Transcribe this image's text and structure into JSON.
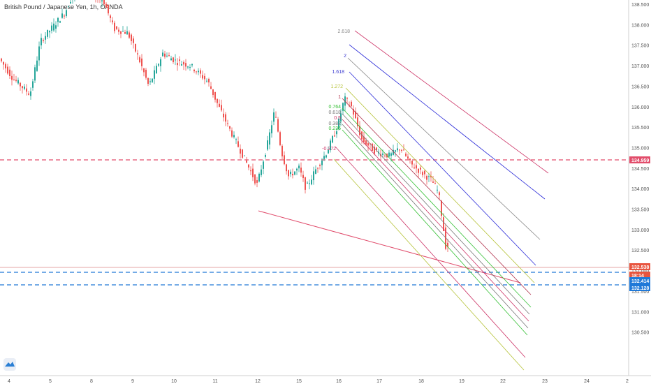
{
  "header": {
    "symbol_title": "British Pound / Japanese Yen, 1h, OANDA"
  },
  "price_axis": {
    "ticks": [
      "138.500",
      "138.000",
      "137.500",
      "137.000",
      "136.500",
      "136.000",
      "135.500",
      "135.000",
      "134.500",
      "134.000",
      "133.500",
      "133.000",
      "132.500",
      "132.000",
      "131.500",
      "131.000",
      "130.500"
    ],
    "badges": [
      {
        "label": "134.959",
        "color": "#e24d6b"
      },
      {
        "label": "132.538",
        "color": "#e8553f"
      },
      {
        "label": "18:14",
        "color": "#e8553f"
      },
      {
        "label": "132.414",
        "color": "#2079d8"
      },
      {
        "label": "132.128",
        "color": "#2079d8"
      }
    ]
  },
  "time_axis": {
    "ticks": [
      "4",
      "5",
      "8",
      "9",
      "10",
      "11",
      "12",
      "15",
      "16",
      "17",
      "18",
      "19",
      "22",
      "23",
      "24",
      "2"
    ]
  },
  "fib_labels": [
    {
      "text": "2.618",
      "color": "#8a8a8a"
    },
    {
      "text": "2",
      "color": "#3a3ad0"
    },
    {
      "text": "1.618",
      "color": "#3a3ad0"
    },
    {
      "text": "1.272",
      "color": "#b5c236"
    },
    {
      "text": "1",
      "color": "#b0304a"
    },
    {
      "text": "0.764",
      "color": "#35c035"
    },
    {
      "text": "0.618",
      "color": "#777777"
    },
    {
      "text": "0.5",
      "color": "#cc3366"
    },
    {
      "text": "0.382",
      "color": "#777777"
    },
    {
      "text": "0.236",
      "color": "#35c035"
    },
    {
      "text": "-0.272",
      "color": "#cc3366"
    }
  ],
  "colors": {
    "bull": "#26a69a",
    "bear": "#ef5350",
    "hline_red": "#e24d6b",
    "hline_blue": "#2079d8",
    "trendline": "#e04a6a"
  },
  "icons": {
    "logo": "tradingview-logo-icon"
  }
}
